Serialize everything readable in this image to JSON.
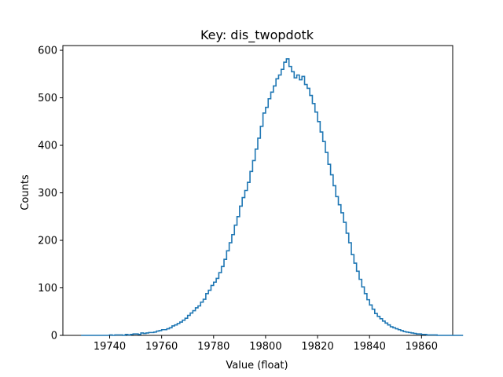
{
  "chart_data": {
    "type": "histogram-step",
    "title": "Key: dis_twopdotk",
    "xlabel": "Value (float)",
    "ylabel": "Counts",
    "xlim": [
      19722,
      19872
    ],
    "ylim": [
      0,
      610
    ],
    "xticks": [
      19740,
      19760,
      19780,
      19800,
      19820,
      19840,
      19860
    ],
    "yticks": [
      0,
      100,
      200,
      300,
      400,
      500,
      600
    ],
    "grid": false,
    "color": "#1f77b4",
    "bin_start": 19729,
    "bin_width": 1,
    "counts": [
      0,
      0,
      0,
      0,
      0,
      0,
      0,
      0,
      0,
      0,
      0,
      1,
      0,
      1,
      1,
      1,
      0,
      2,
      1,
      2,
      3,
      3,
      2,
      5,
      4,
      5,
      6,
      6,
      7,
      9,
      10,
      12,
      12,
      14,
      16,
      20,
      22,
      25,
      28,
      32,
      36,
      42,
      47,
      52,
      58,
      62,
      70,
      76,
      88,
      95,
      105,
      112,
      120,
      132,
      145,
      160,
      178,
      195,
      212,
      232,
      250,
      272,
      290,
      305,
      322,
      345,
      368,
      392,
      415,
      440,
      468,
      480,
      498,
      512,
      525,
      540,
      548,
      560,
      575,
      582,
      566,
      555,
      542,
      548,
      538,
      545,
      528,
      520,
      505,
      488,
      470,
      450,
      428,
      408,
      385,
      360,
      338,
      315,
      292,
      275,
      258,
      238,
      215,
      195,
      170,
      152,
      135,
      118,
      102,
      88,
      75,
      64,
      55,
      46,
      40,
      35,
      30,
      26,
      22,
      18,
      16,
      14,
      12,
      10,
      8,
      7,
      6,
      5,
      4,
      3,
      3,
      2,
      2,
      1,
      1,
      1,
      1,
      0,
      0,
      0,
      0,
      0,
      0,
      0,
      0,
      0,
      0
    ]
  }
}
